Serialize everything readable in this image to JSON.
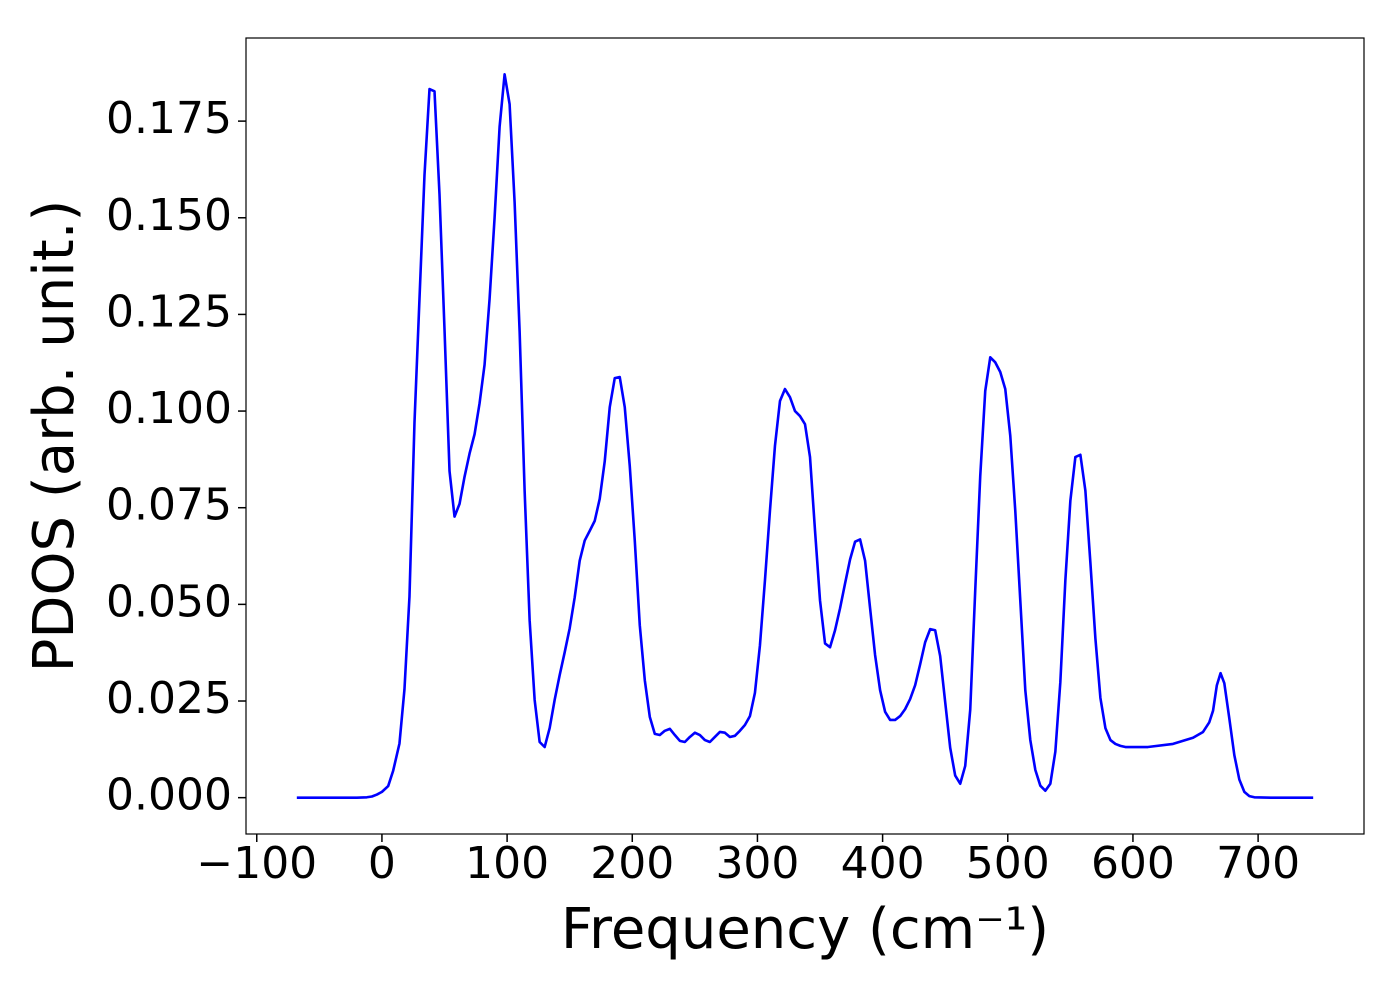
{
  "chart_data": {
    "type": "line",
    "xlabel": "Frequency (cm⁻¹)",
    "ylabel": "PDOS (arb. unit.)",
    "x": [
      -68,
      -40,
      -20,
      -12,
      -8,
      -4,
      0,
      5,
      9,
      14,
      18,
      22,
      26,
      30,
      34,
      38,
      42,
      46,
      50,
      54,
      58,
      62,
      66,
      70,
      74,
      78,
      82,
      86,
      90,
      94,
      98,
      102,
      106,
      110,
      114,
      118,
      122,
      126,
      130,
      134,
      138,
      142,
      146,
      150,
      154,
      158,
      162,
      166,
      170,
      174,
      178,
      182,
      186,
      190,
      194,
      198,
      202,
      206,
      210,
      214,
      218,
      222,
      226,
      230,
      234,
      238,
      242,
      246,
      250,
      254,
      258,
      262,
      266,
      270,
      274,
      278,
      282,
      286,
      290,
      294,
      298,
      302,
      306,
      310,
      314,
      318,
      322,
      326,
      330,
      334,
      338,
      342,
      346,
      350,
      354,
      358,
      362,
      366,
      370,
      374,
      378,
      382,
      386,
      390,
      394,
      398,
      402,
      406,
      410,
      414,
      418,
      422,
      426,
      430,
      434,
      438,
      442,
      446,
      450,
      454,
      458,
      462,
      466,
      470,
      474,
      478,
      482,
      486,
      490,
      494,
      498,
      502,
      506,
      510,
      514,
      518,
      522,
      526,
      530,
      534,
      538,
      542,
      546,
      550,
      554,
      558,
      562,
      566,
      570,
      574,
      578,
      582,
      586,
      590,
      594,
      612,
      632,
      648,
      656,
      661,
      664,
      667,
      670,
      673,
      677,
      681,
      685,
      689,
      693,
      697,
      710,
      744
    ],
    "series": [
      {
        "name": "PDOS",
        "color": "#0000ff",
        "values": [
          0,
          0,
          0,
          0.0001,
          0.0003,
          0.0008,
          0.0015,
          0.003,
          0.007,
          0.014,
          0.028,
          0.052,
          0.097,
          0.129,
          0.161,
          0.1833,
          0.1827,
          0.156,
          0.121,
          0.0845,
          0.0727,
          0.076,
          0.083,
          0.089,
          0.094,
          0.102,
          0.112,
          0.129,
          0.15,
          0.1735,
          0.1871,
          0.1794,
          0.154,
          0.1206,
          0.0794,
          0.0459,
          0.0253,
          0.0144,
          0.0131,
          0.018,
          0.0253,
          0.0317,
          0.0376,
          0.0438,
          0.0518,
          0.0613,
          0.0665,
          0.069,
          0.0716,
          0.0773,
          0.087,
          0.101,
          0.1085,
          0.1088,
          0.101,
          0.0858,
          0.0665,
          0.0446,
          0.0304,
          0.0209,
          0.0165,
          0.0162,
          0.0173,
          0.0178,
          0.0162,
          0.0147,
          0.0144,
          0.0157,
          0.0168,
          0.0162,
          0.0149,
          0.0144,
          0.0157,
          0.017,
          0.0168,
          0.0157,
          0.016,
          0.0173,
          0.0188,
          0.0211,
          0.0271,
          0.0394,
          0.0562,
          0.0742,
          0.091,
          0.1026,
          0.1057,
          0.1036,
          0.1,
          0.0987,
          0.0966,
          0.0881,
          0.0691,
          0.051,
          0.0399,
          0.0389,
          0.0433,
          0.049,
          0.0554,
          0.0616,
          0.0662,
          0.0668,
          0.0613,
          0.049,
          0.0369,
          0.0278,
          0.0222,
          0.0201,
          0.0201,
          0.0211,
          0.0229,
          0.0255,
          0.0291,
          0.0345,
          0.0402,
          0.0436,
          0.0433,
          0.0366,
          0.0247,
          0.0129,
          0.0057,
          0.0036,
          0.0082,
          0.0227,
          0.0536,
          0.0832,
          0.1052,
          0.1139,
          0.1126,
          0.1101,
          0.1057,
          0.0936,
          0.0742,
          0.051,
          0.0278,
          0.0149,
          0.0072,
          0.0031,
          0.0018,
          0.0036,
          0.0119,
          0.0299,
          0.0562,
          0.0768,
          0.0881,
          0.0887,
          0.0794,
          0.0608,
          0.0412,
          0.0258,
          0.018,
          0.0149,
          0.0139,
          0.0134,
          0.0131,
          0.0131,
          0.0139,
          0.0155,
          0.017,
          0.0195,
          0.0225,
          0.029,
          0.0322,
          0.0296,
          0.0205,
          0.011,
          0.0047,
          0.0015,
          0.0004,
          0.0001,
          0,
          0
        ]
      }
    ],
    "xlim": [
      -108.6,
      784.6
    ],
    "ylim": [
      -0.0094,
      0.1965
    ],
    "xticks": [
      {
        "value": -100,
        "label": "−100"
      },
      0,
      100,
      200,
      300,
      400,
      500,
      600,
      700
    ],
    "yticks": [
      {
        "value": 0,
        "label": "0.000"
      },
      0.025,
      {
        "value": 0.05,
        "label": "0.050"
      },
      0.075,
      {
        "value": 0.1,
        "label": "0.100"
      },
      0.125,
      {
        "value": 0.15,
        "label": "0.150"
      },
      0.175
    ],
    "grid": false
  }
}
